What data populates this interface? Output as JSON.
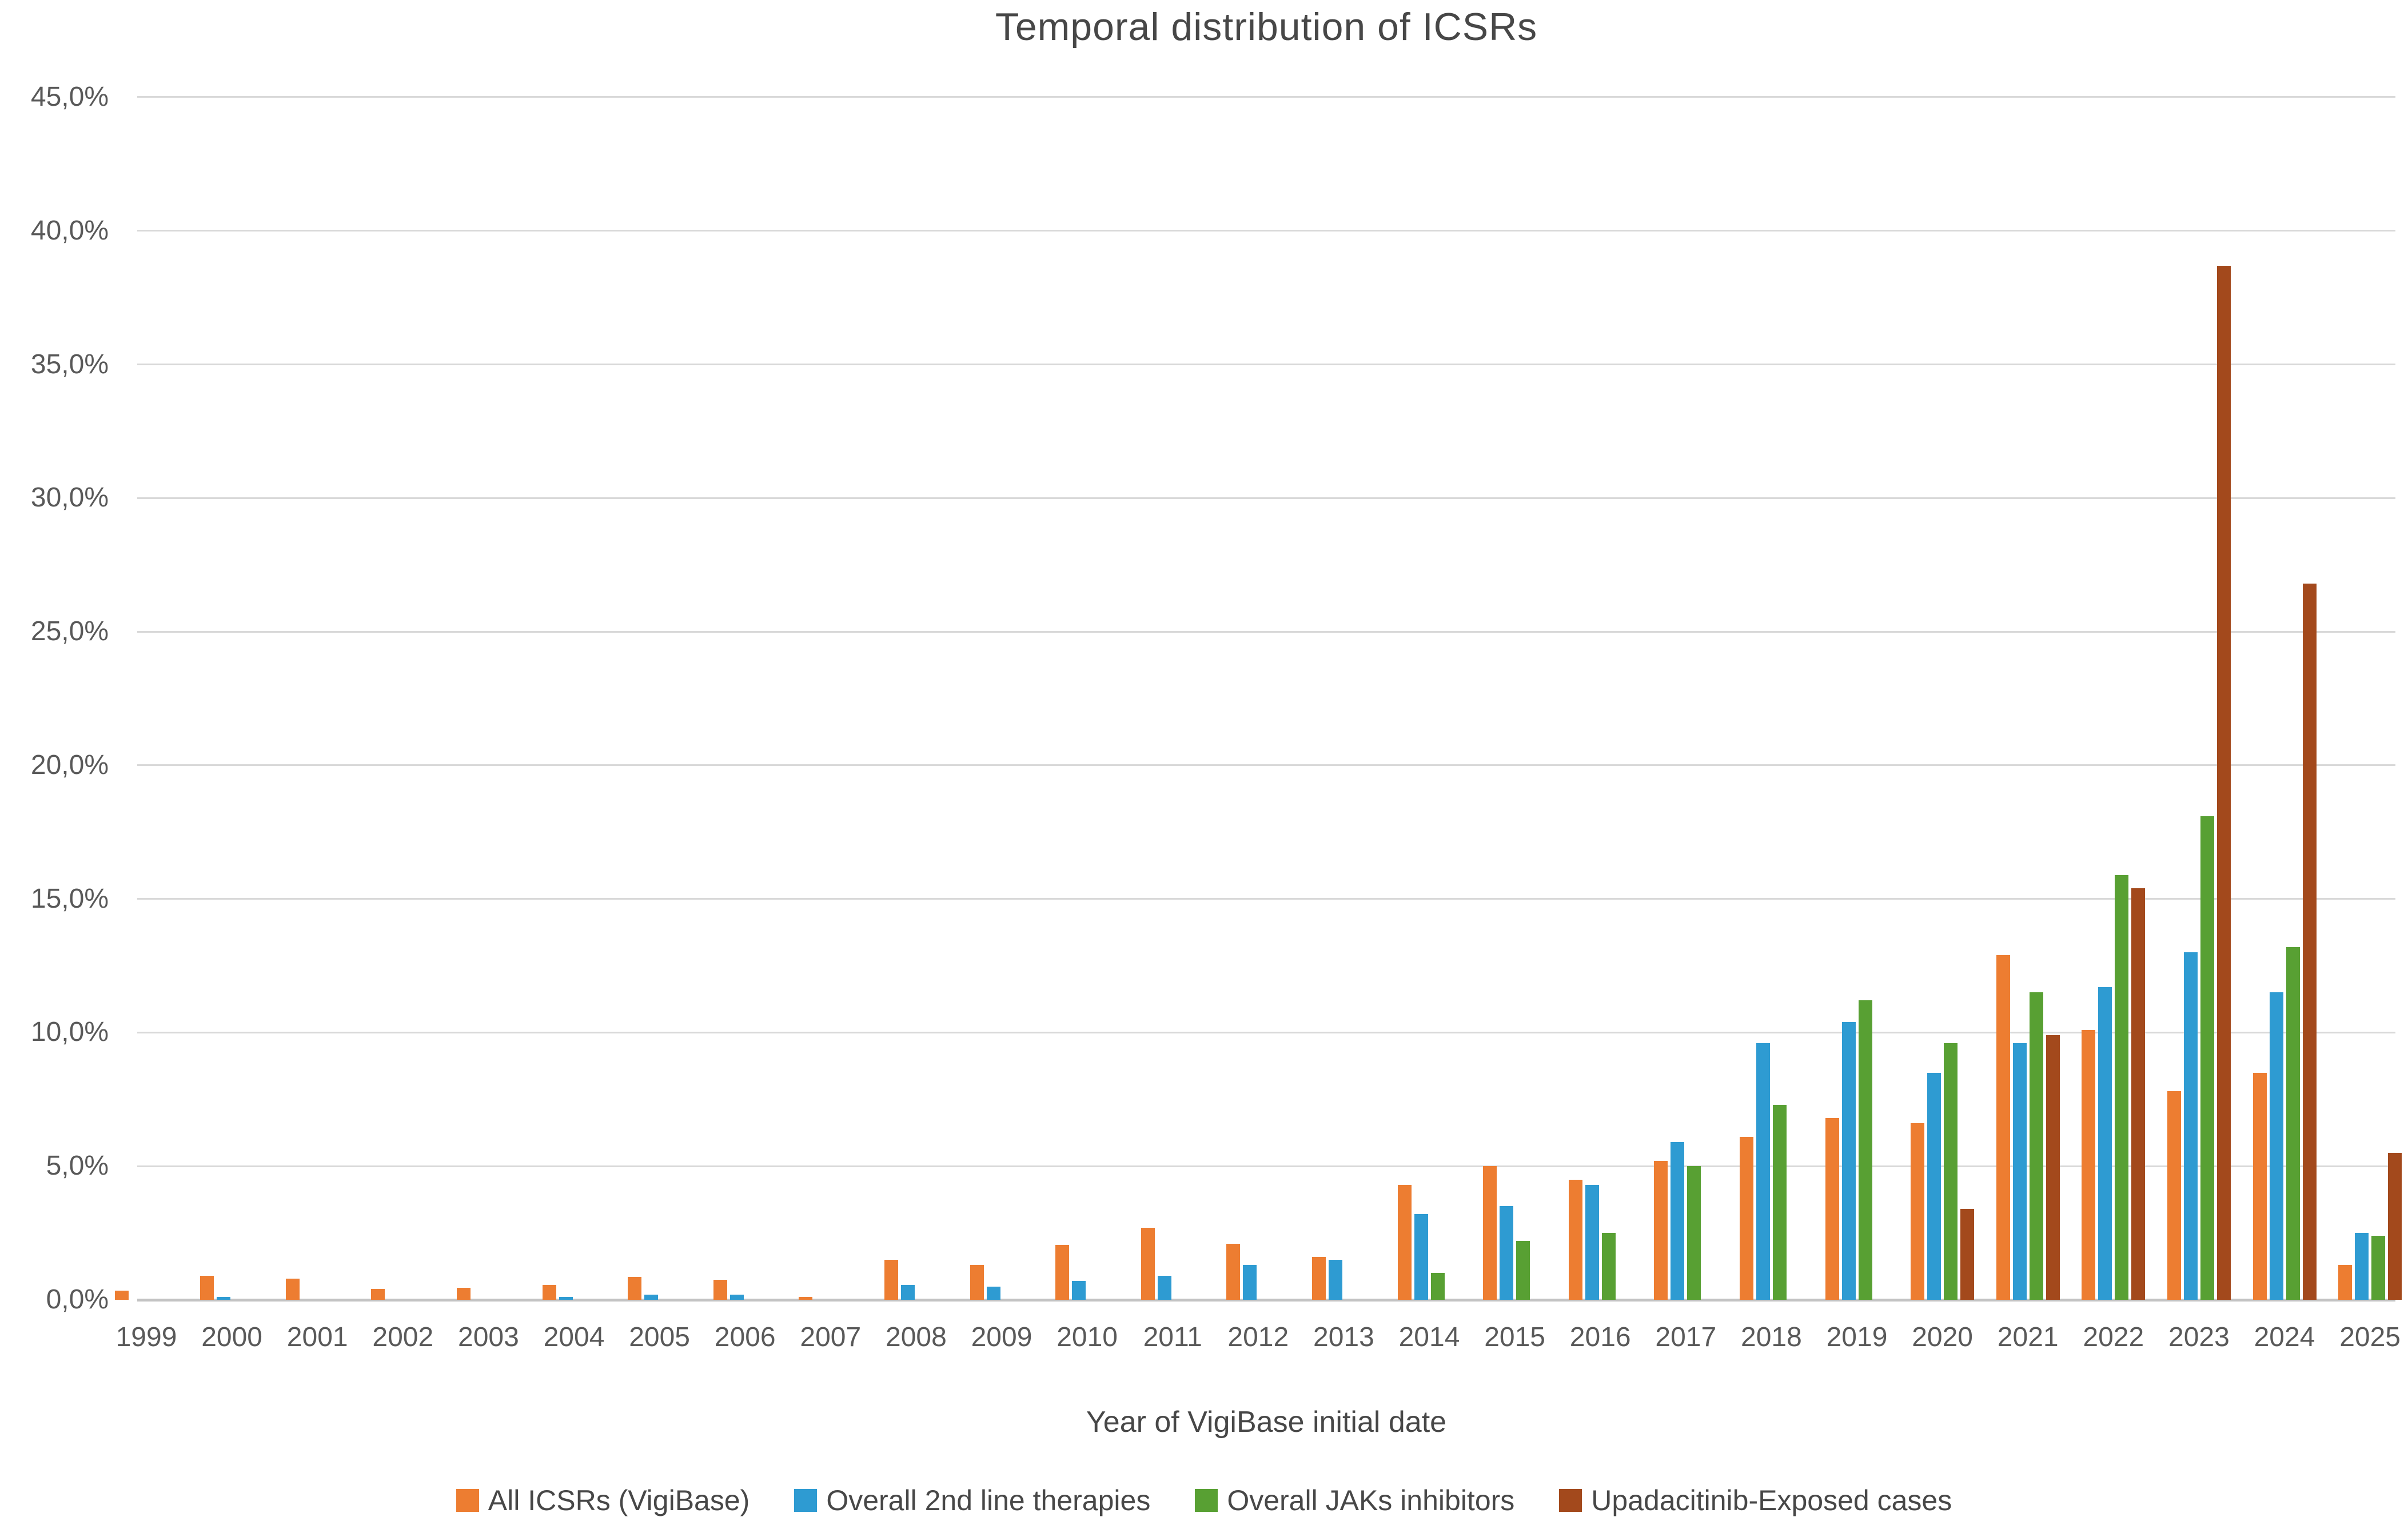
{
  "title": "Temporal distribution of ICSRs",
  "x_axis_title": "Year of VigiBase initial date",
  "y_axis": {
    "tick_labels": [
      "0,0%",
      "5,0%",
      "10,0%",
      "15,0%",
      "20,0%",
      "25,0%",
      "30,0%",
      "35,0%",
      "40,0%",
      "45,0%"
    ],
    "tick_step_percent": 5,
    "max_percent": 45
  },
  "colors": {
    "all_icsrs": "#ED7D31",
    "second_line": "#2E9BD2",
    "jaks_inhibitors": "#58A033",
    "upadacitinib": "#A3491C",
    "gridline": "#D9D9D9",
    "baseline": "#C3C3C3",
    "text": "#595959"
  },
  "chart_data": {
    "type": "bar",
    "title": "Temporal distribution of ICSRs",
    "xlabel": "Year of VigiBase initial date",
    "ylabel": "",
    "ylim": [
      0,
      45
    ],
    "grid": true,
    "legend_position": "bottom",
    "y_tick_format": "percent with comma decimal (e.g. 45,0%)",
    "categories": [
      "1999",
      "2000",
      "2001",
      "2002",
      "2003",
      "2004",
      "2005",
      "2006",
      "2007",
      "2008",
      "2009",
      "2010",
      "2011",
      "2012",
      "2013",
      "2014",
      "2015",
      "2016",
      "2017",
      "2018",
      "2019",
      "2020",
      "2021",
      "2022",
      "2023",
      "2024",
      "2025"
    ],
    "series": [
      {
        "name": "All ICSRs (VigiBase)",
        "color": "#ED7D31",
        "values": [
          0.35,
          0.9,
          0.8,
          0.4,
          0.45,
          0.55,
          0.85,
          0.75,
          0.1,
          1.5,
          1.3,
          2.05,
          2.7,
          2.1,
          1.6,
          4.3,
          5.0,
          4.5,
          5.2,
          6.1,
          6.8,
          6.6,
          12.9,
          10.1,
          7.8,
          8.5,
          1.3
        ]
      },
      {
        "name": "Overall 2nd line therapies",
        "color": "#2E9BD2",
        "values": [
          null,
          0.1,
          null,
          null,
          null,
          0.1,
          0.2,
          0.2,
          null,
          0.55,
          0.5,
          0.7,
          0.9,
          1.3,
          1.5,
          3.2,
          3.5,
          4.3,
          5.9,
          9.6,
          10.4,
          8.5,
          9.6,
          11.7,
          13.0,
          11.5,
          2.5
        ]
      },
      {
        "name": "Overall JAKs inhibitors",
        "color": "#58A033",
        "values": [
          null,
          null,
          null,
          null,
          null,
          null,
          null,
          null,
          null,
          null,
          null,
          null,
          null,
          null,
          null,
          1.0,
          2.2,
          2.5,
          5.0,
          7.3,
          11.2,
          9.6,
          11.5,
          15.9,
          18.1,
          13.2,
          2.4
        ]
      },
      {
        "name": "Upadacitinib-Exposed cases",
        "color": "#A3491C",
        "values": [
          null,
          null,
          null,
          null,
          null,
          null,
          null,
          null,
          null,
          null,
          null,
          null,
          null,
          null,
          null,
          null,
          null,
          null,
          null,
          null,
          null,
          3.4,
          9.9,
          15.4,
          38.7,
          26.8,
          5.5
        ]
      }
    ]
  }
}
